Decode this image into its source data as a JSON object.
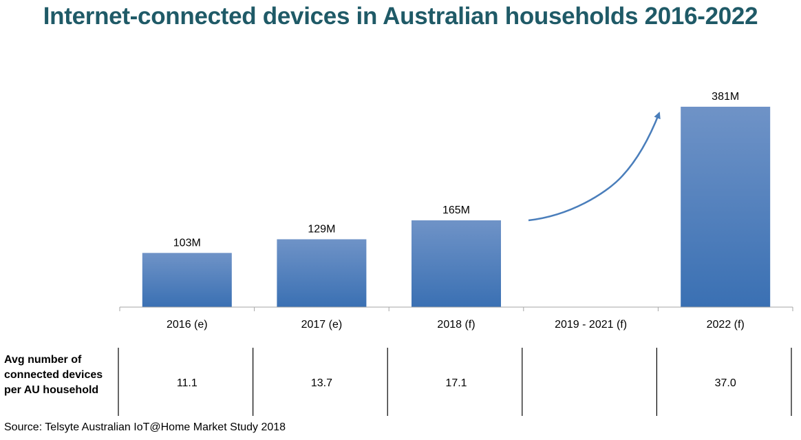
{
  "title": "Internet-connected devices in Australian households 2016-2022",
  "avg_row": {
    "label": "Avg number of connected devices per AU household",
    "values": [
      "11.1",
      "13.7",
      "17.1",
      "",
      "37.0"
    ]
  },
  "source": "Source: Telsyte Australian IoT@Home Market Study 2018",
  "colors": {
    "title": "#1F5A67",
    "bar_top": "#6F93C7",
    "bar_bottom": "#3A70B3",
    "arrow": "#4A7EBB",
    "axis": "#A6A6A6"
  },
  "chart_data": {
    "type": "bar",
    "categories": [
      "2016 (e)",
      "2017 (e)",
      "2018 (f)",
      "2019 - 2021 (f)",
      "2022 (f)"
    ],
    "values": [
      103,
      129,
      165,
      null,
      381
    ],
    "data_labels": [
      "103M",
      "129M",
      "165M",
      "",
      "381M"
    ],
    "unit": "M",
    "ylim": [
      0,
      381
    ],
    "grid": false,
    "annotation": "upward growth arrow spanning 2019 - 2021 (f)"
  }
}
